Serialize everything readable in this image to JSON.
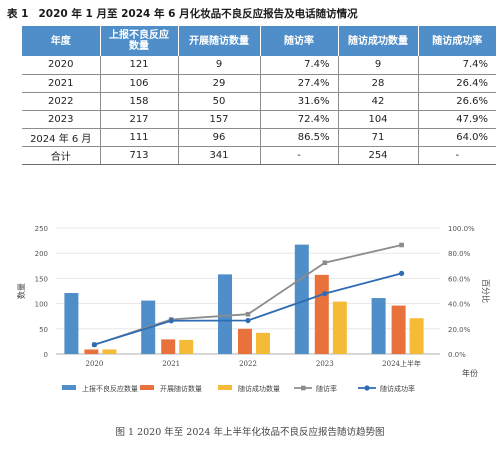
{
  "table": {
    "label": "表 1",
    "title": "2020 年 1 月至 2024 年 6 月化妆品不良反应报告及电话随访情况",
    "headers": [
      "年度",
      "上报不良反应\n数量",
      "开展随访数量",
      "随访率",
      "随访成功数量",
      "随访成功率"
    ],
    "rows": [
      [
        "2020",
        "121",
        "9",
        "7.4%",
        "9",
        "7.4%"
      ],
      [
        "2021",
        "106",
        "29",
        "27.4%",
        "28",
        "26.4%"
      ],
      [
        "2022",
        "158",
        "50",
        "31.6%",
        "42",
        "26.6%"
      ],
      [
        "2023",
        "217",
        "157",
        "72.4%",
        "104",
        "47.9%"
      ],
      [
        "2024 年 6 月",
        "111",
        "96",
        "86.5%",
        "71",
        "64.0%"
      ],
      [
        "合计",
        "713",
        "341",
        "-",
        "254",
        "-"
      ]
    ]
  },
  "chart_data": {
    "type": "bar",
    "categories": [
      "2020",
      "2021",
      "2022",
      "2023",
      "2024上半年"
    ],
    "xlabel": "年份",
    "ylabel": "数量",
    "y2label": "百分比",
    "ylim": [
      0,
      250
    ],
    "yticks": [
      "0",
      "50",
      "100",
      "150",
      "200",
      "250"
    ],
    "y2lim": [
      0,
      100
    ],
    "y2ticks": [
      "0.0%",
      "20.0%",
      "40.0%",
      "60.0%",
      "80.0%",
      "100.0%"
    ],
    "legend_position": "bottom",
    "series": [
      {
        "name": "上报不良反应数量",
        "kind": "bar",
        "axis": "left",
        "color": "#4f8ec9",
        "values": [
          121,
          106,
          158,
          217,
          111
        ]
      },
      {
        "name": "开展随访数量",
        "kind": "bar",
        "axis": "left",
        "color": "#e8713c",
        "values": [
          9,
          29,
          50,
          157,
          96
        ]
      },
      {
        "name": "随访成功数量",
        "kind": "bar",
        "axis": "left",
        "color": "#f5bb36",
        "values": [
          9,
          28,
          42,
          104,
          71
        ]
      },
      {
        "name": "随访率",
        "kind": "line",
        "axis": "right",
        "color": "#8c8c8c",
        "values": [
          7.4,
          27.4,
          31.6,
          72.4,
          86.5
        ]
      },
      {
        "name": "随访成功率",
        "kind": "line",
        "axis": "right",
        "color": "#2f6cb4",
        "values": [
          7.4,
          26.4,
          26.6,
          47.9,
          64.0
        ]
      }
    ]
  },
  "caption": "图 1 2020 年至 2024 年上半年化妆品不良反应报告随访趋势图"
}
